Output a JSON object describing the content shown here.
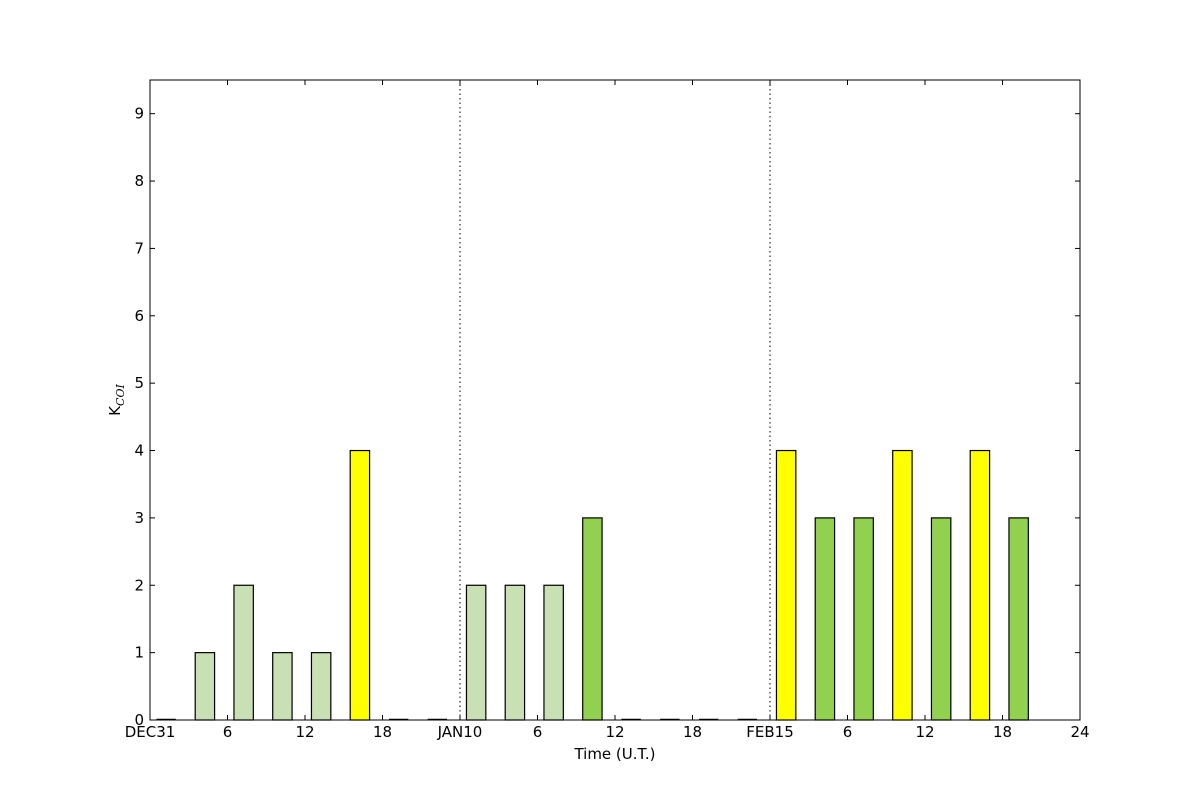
{
  "chart_data": {
    "type": "bar",
    "title": "",
    "xlabel": "Time (U.T.)",
    "ylabel_main": "K",
    "ylabel_sub": "COI",
    "ylim": [
      0,
      9.5
    ],
    "yticks": [
      "0",
      "1",
      "2",
      "3",
      "4",
      "5",
      "6",
      "7",
      "8",
      "9"
    ],
    "xlim": [
      0,
      72
    ],
    "xticks": [
      {
        "x": 0,
        "label": "DEC31"
      },
      {
        "x": 6,
        "label": "6"
      },
      {
        "x": 12,
        "label": "12"
      },
      {
        "x": 18,
        "label": "18"
      },
      {
        "x": 24,
        "label": "JAN10"
      },
      {
        "x": 30,
        "label": "6"
      },
      {
        "x": 36,
        "label": "12"
      },
      {
        "x": 42,
        "label": "18"
      },
      {
        "x": 48,
        "label": "FEB15"
      },
      {
        "x": 54,
        "label": "6"
      },
      {
        "x": 60,
        "label": "12"
      },
      {
        "x": 66,
        "label": "18"
      },
      {
        "x": 72,
        "label": "24"
      }
    ],
    "day_separators": [
      24,
      48
    ],
    "bar_width_hours": 1.5,
    "colors": {
      "0": "#c8e0b4",
      "1": "#c8e0b4",
      "2": "#c8e0b4",
      "3": "#92d050",
      "4": "#ffff00"
    },
    "bars": [
      {
        "x": 0,
        "value": 0
      },
      {
        "x": 3,
        "value": 1
      },
      {
        "x": 6,
        "value": 2
      },
      {
        "x": 9,
        "value": 1
      },
      {
        "x": 12,
        "value": 1
      },
      {
        "x": 15,
        "value": 4
      },
      {
        "x": 18,
        "value": 0
      },
      {
        "x": 21,
        "value": 0
      },
      {
        "x": 24,
        "value": 2
      },
      {
        "x": 27,
        "value": 2
      },
      {
        "x": 30,
        "value": 2
      },
      {
        "x": 33,
        "value": 3
      },
      {
        "x": 36,
        "value": 0
      },
      {
        "x": 39,
        "value": 0
      },
      {
        "x": 42,
        "value": 0
      },
      {
        "x": 45,
        "value": 0
      },
      {
        "x": 48,
        "value": 4
      },
      {
        "x": 51,
        "value": 3
      },
      {
        "x": 54,
        "value": 3
      },
      {
        "x": 57,
        "value": 4
      },
      {
        "x": 60,
        "value": 3
      },
      {
        "x": 63,
        "value": 4
      },
      {
        "x": 66,
        "value": 3
      }
    ]
  }
}
